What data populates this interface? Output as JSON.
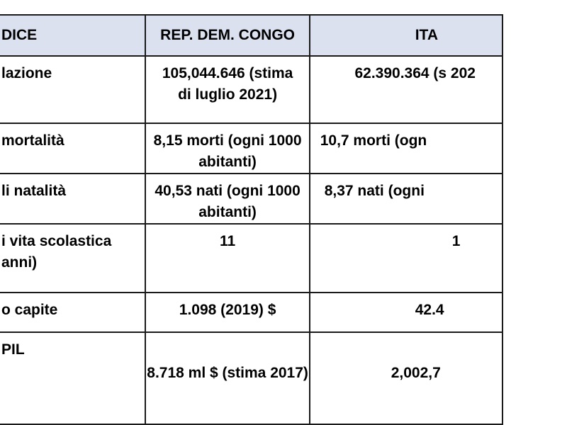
{
  "header": {
    "col_index": "DICE",
    "col_congo": "REP. DEM. CONGO",
    "col_italy": "ITA"
  },
  "rows": [
    {
      "label": "lazione",
      "congo": "105,044.646 (stima di luglio 2021)",
      "italy": "62.390.364 (s 202"
    },
    {
      "label": "mortalità",
      "congo": "8,15 morti (ogni 1000 abitanti)",
      "italy": "10,7 morti (ogn"
    },
    {
      "label": "li natalità",
      "congo": "40,53 nati (ogni 1000 abitanti)",
      "italy": "8,37 nati (ogni"
    },
    {
      "label": "i vita scolastica anni)",
      "congo": "11",
      "italy": "1"
    },
    {
      "label": "o capite",
      "congo": "1.098 (2019) $",
      "italy": "42.4"
    },
    {
      "label": "PIL",
      "congo": "8.718 ml $ (stima 2017)",
      "italy": "2,002,7"
    }
  ],
  "colors": {
    "header_bg": "#dbe1ef",
    "border": "#1a1a1a"
  }
}
